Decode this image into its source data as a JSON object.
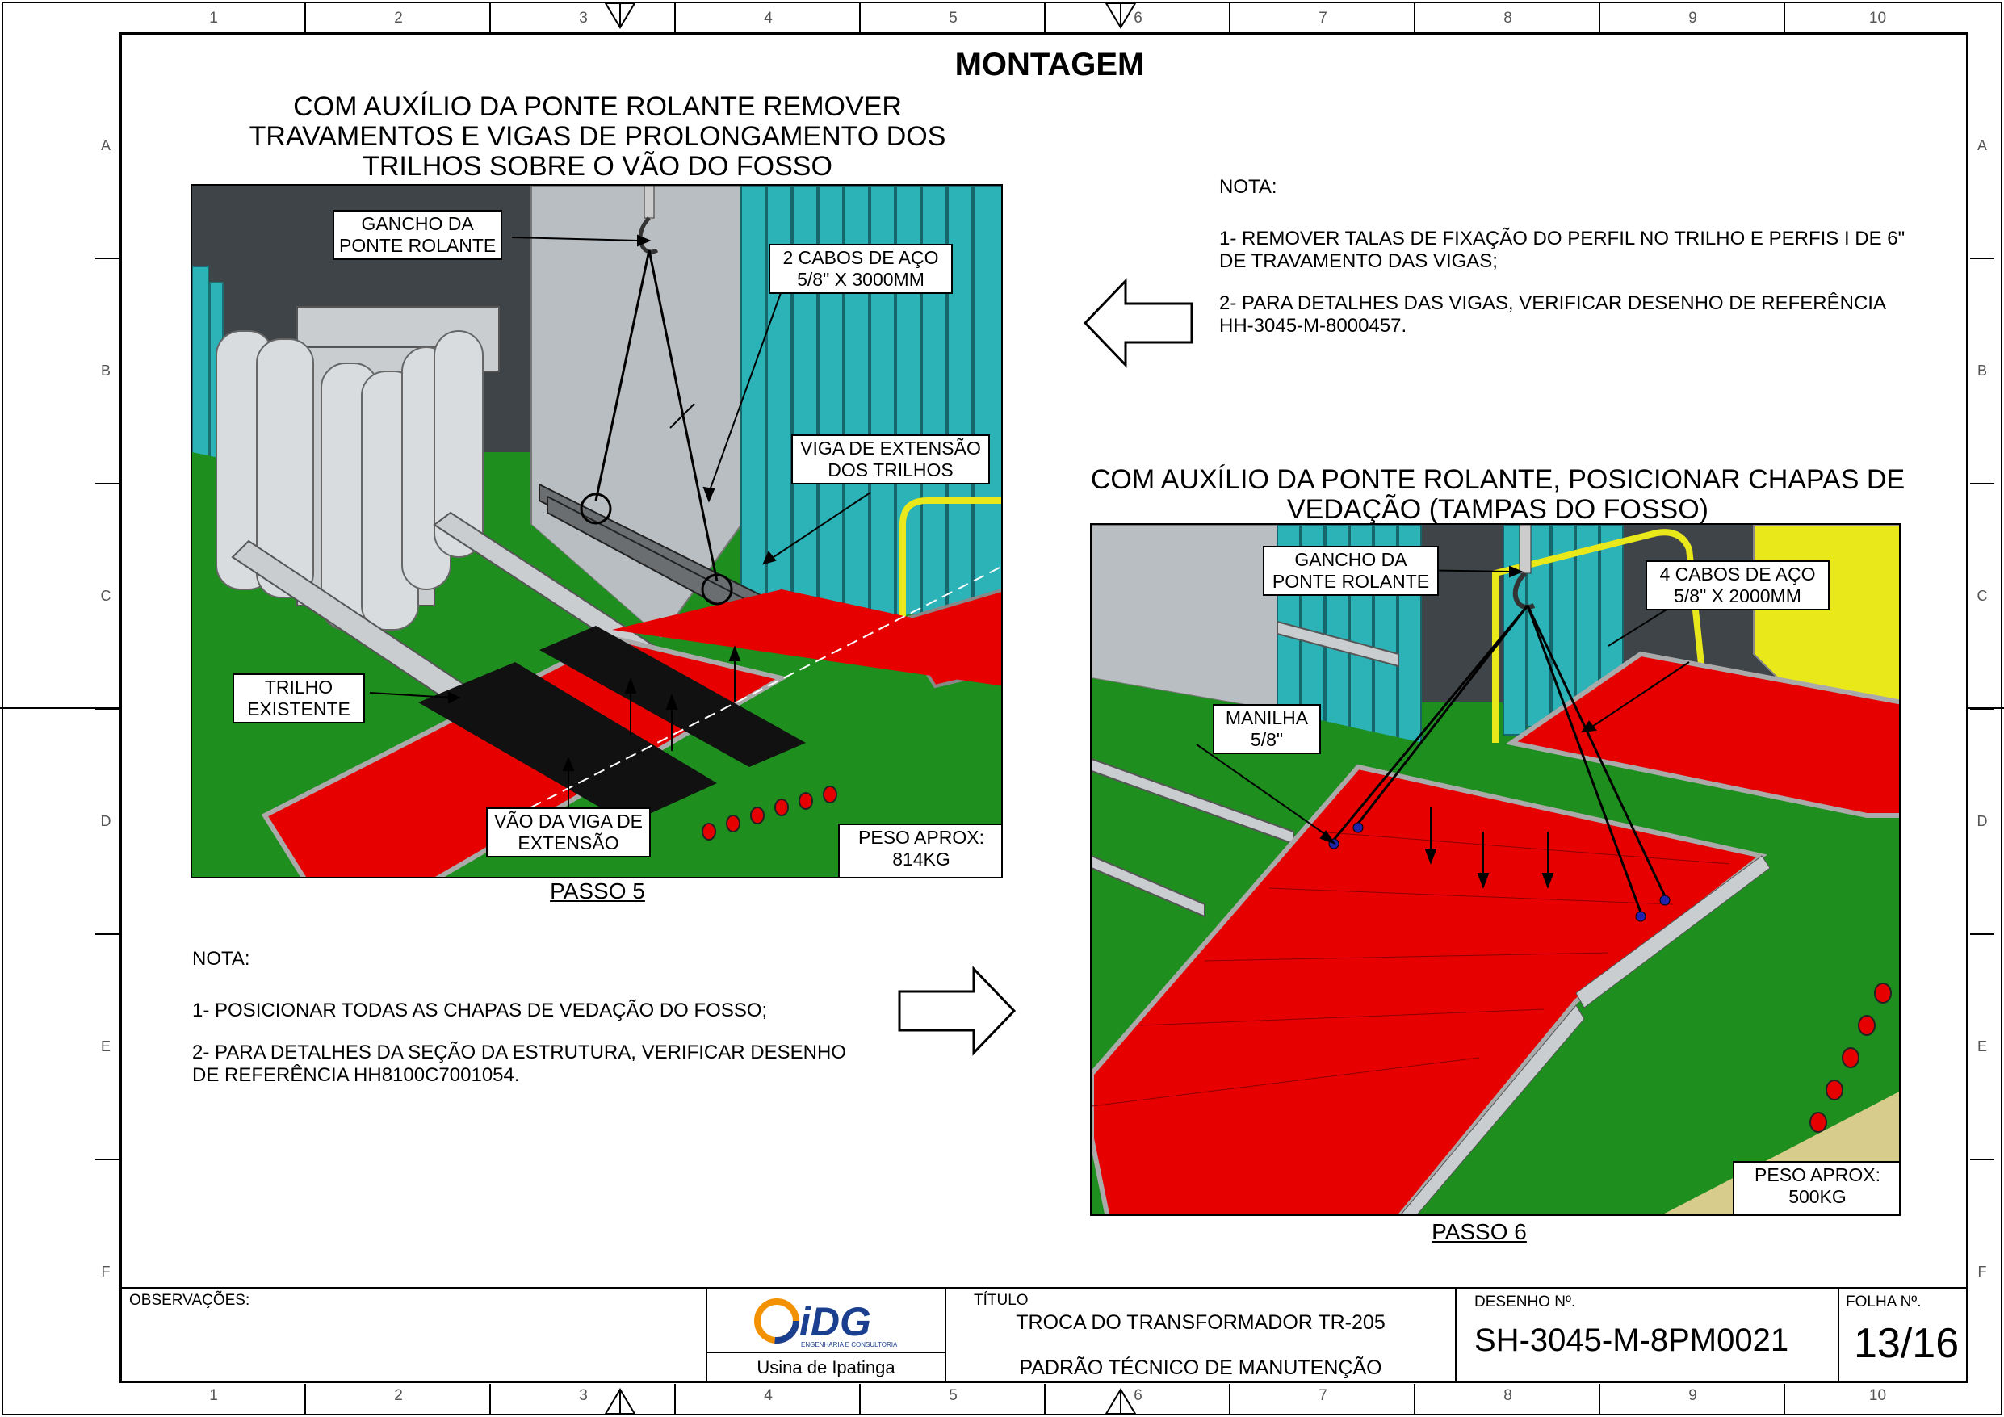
{
  "zones": {
    "columns": [
      "1",
      "2",
      "3",
      "4",
      "5",
      "6",
      "7",
      "8",
      "9",
      "10"
    ],
    "rows": [
      "A",
      "B",
      "C",
      "D",
      "E",
      "F"
    ]
  },
  "page": {
    "title": "MONTAGEM"
  },
  "step5": {
    "title_lines": [
      "COM AUXÍLIO DA PONTE ROLANTE REMOVER",
      "TRAVAMENTOS E VIGAS DE PROLONGAMENTO DOS",
      "TRILHOS SOBRE O VÃO DO FOSSO"
    ],
    "callouts": {
      "gancho": [
        "GANCHO DA",
        "PONTE ROLANTE"
      ],
      "cabos": [
        "2 CABOS DE AÇO",
        "5/8\" X 3000MM"
      ],
      "viga": [
        "VIGA DE EXTENSÃO",
        "DOS TRILHOS"
      ],
      "trilho": [
        "TRILHO",
        "EXISTENTE"
      ],
      "vao": [
        "VÃO DA VIGA DE",
        "EXTENSÃO"
      ],
      "peso": [
        "PESO APROX:",
        "814KG"
      ]
    },
    "label": "PASSO 5"
  },
  "note_top": {
    "heading": "NOTA:",
    "item1": [
      "1- REMOVER TALAS DE FIXAÇÃO DO PERFIL NO TRILHO E PERFIS I DE 6\"",
      "DE TRAVAMENTO DAS VIGAS;"
    ],
    "item2": [
      "2- PARA DETALHES DAS VIGAS, VERIFICAR DESENHO DE REFERÊNCIA",
      "HH-3045-M-8000457."
    ]
  },
  "step6": {
    "title_lines": [
      "COM AUXÍLIO DA PONTE ROLANTE, POSICIONAR CHAPAS DE",
      "VEDAÇÃO (TAMPAS DO FOSSO)"
    ],
    "callouts": {
      "gancho": [
        "GANCHO DA",
        "PONTE ROLANTE"
      ],
      "cabos": [
        "4 CABOS DE AÇO",
        "5/8\" X 2000MM"
      ],
      "manilha": [
        "MANILHA",
        "5/8\""
      ],
      "peso": [
        "PESO APROX:",
        "500KG"
      ]
    },
    "label": "PASSO 6"
  },
  "note_bottom": {
    "heading": "NOTA:",
    "item1": "1- POSICIONAR TODAS AS CHAPAS DE VEDAÇÃO DO FOSSO;",
    "item2": [
      "2- PARA DETALHES DA SEÇÃO DA ESTRUTURA, VERIFICAR DESENHO",
      "DE REFERÊNCIA HH8100C7001054."
    ]
  },
  "title_block": {
    "observacoes_label": "OBSERVAÇÕES:",
    "logo_text": "iDG",
    "logo_subtitle": "ENGENHARIA E CONSULTORIA",
    "plant": "Usina de Ipatinga",
    "titulo_label": "TÍTULO",
    "titulo_line1": "TROCA DO TRANSFORMADOR TR-205",
    "titulo_line2": "PADRÃO TÉCNICO DE MANUTENÇÃO",
    "desenho_label": "DESENHO Nº.",
    "desenho_value": "SH-3045-M-8PM0021",
    "folha_label": "FOLHA Nº.",
    "folha_value": "13/16"
  },
  "colors": {
    "floor_green": "#1e8f1e",
    "plate_red": "#e60000",
    "wall_grey": "#b4b9bd",
    "panel_teal": "#2bb3b8",
    "rail_yellow": "#e8e81a",
    "logo_orange": "#f39200",
    "logo_blue": "#1b3f8f"
  }
}
